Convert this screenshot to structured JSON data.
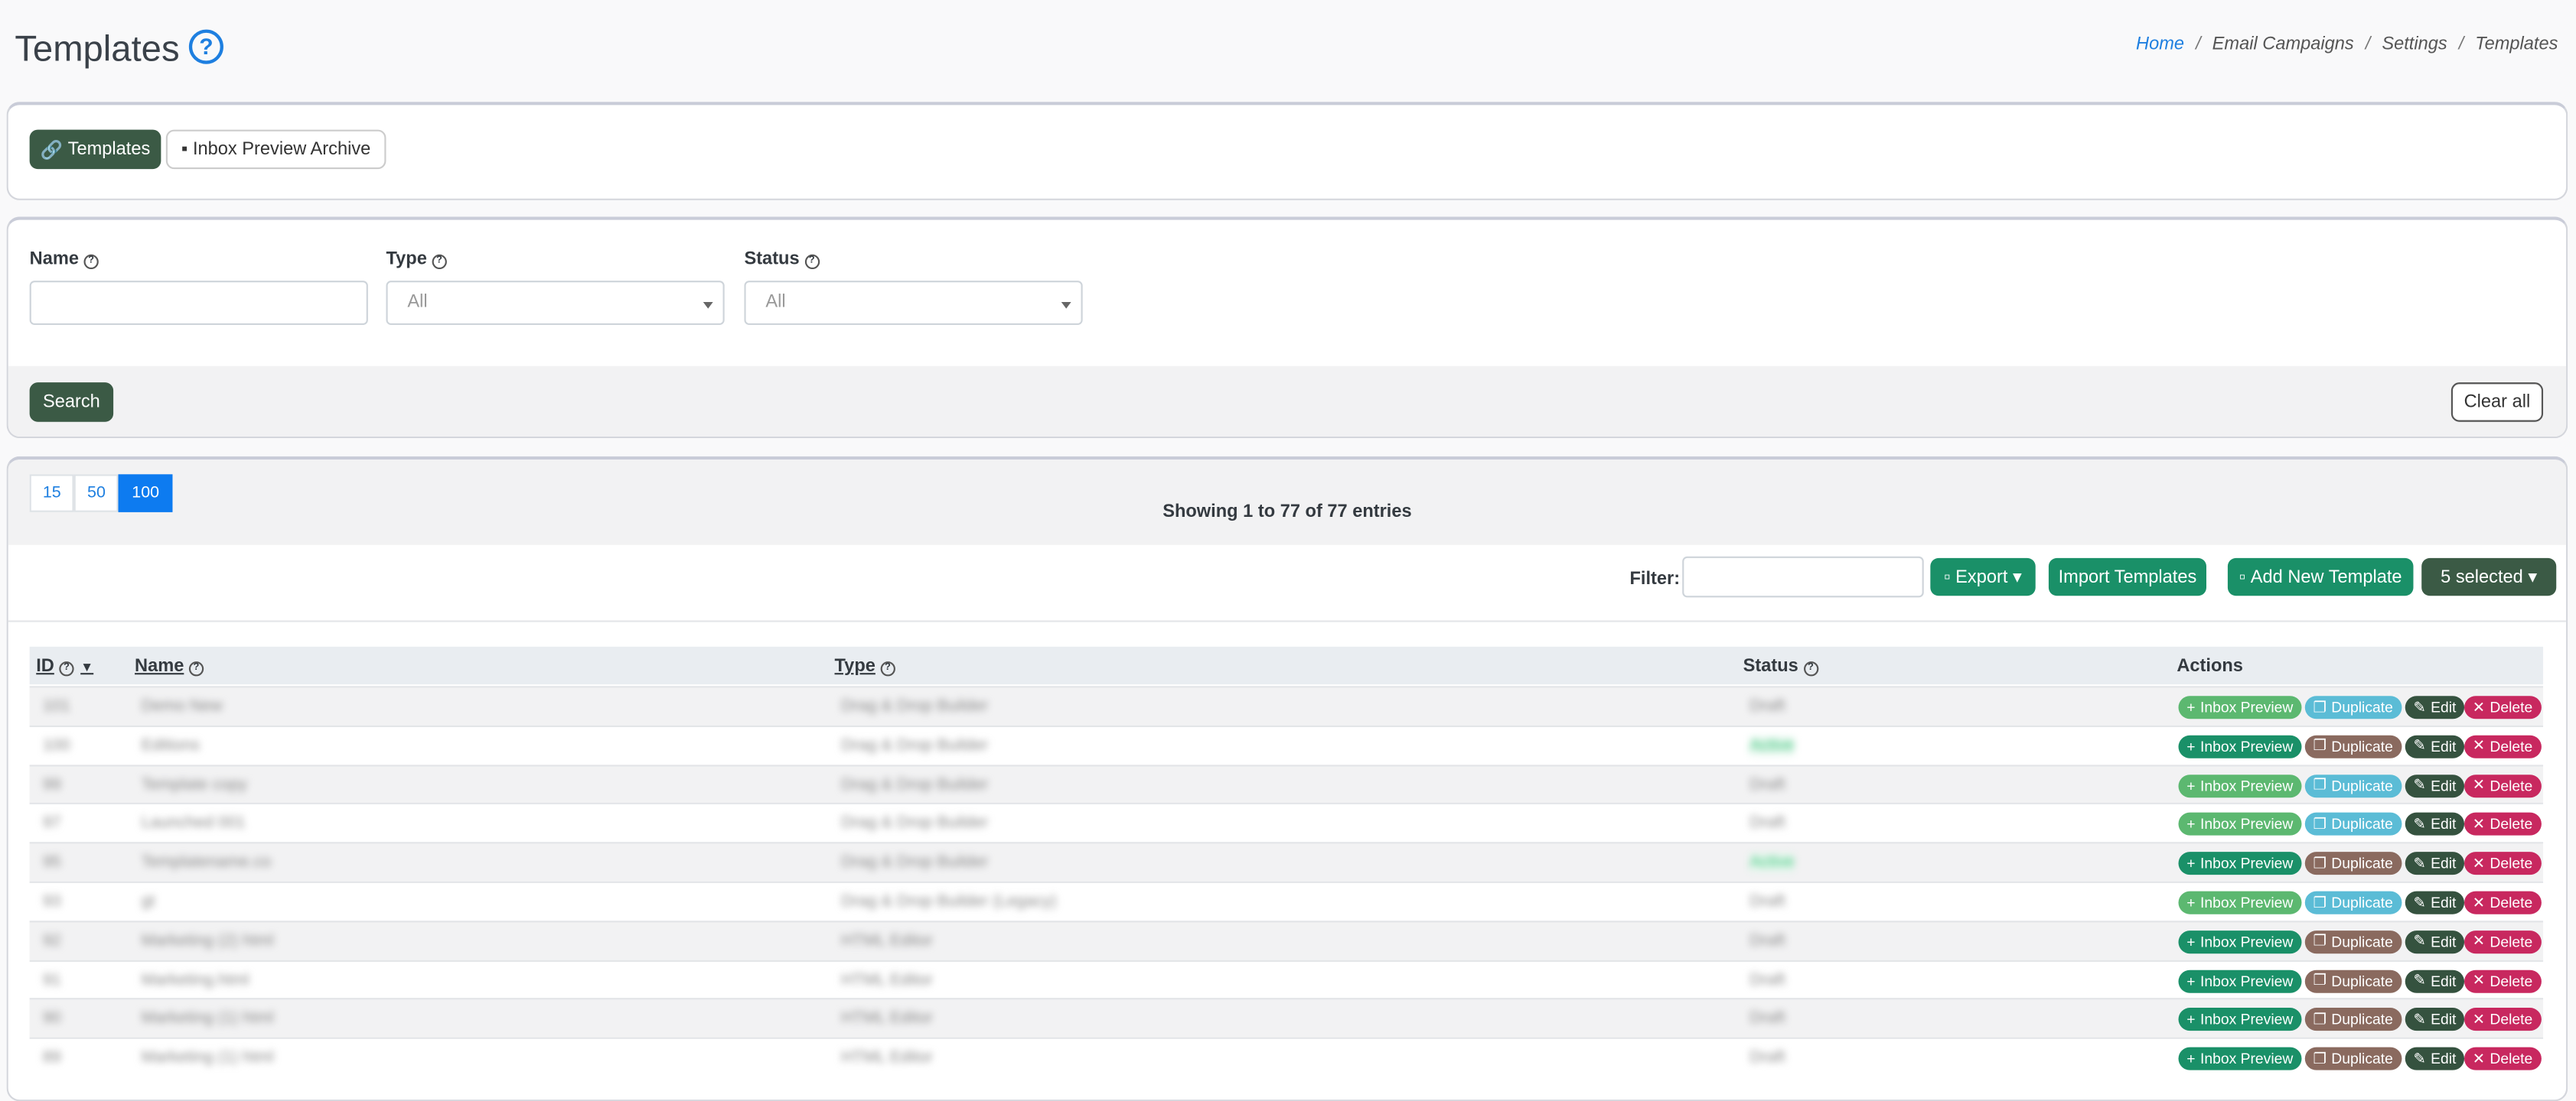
{
  "header": {
    "title": "Templates",
    "breadcrumb": [
      "Home",
      "Email Campaigns",
      "Settings",
      "Templates"
    ]
  },
  "tabs": [
    "Templates",
    "Inbox Preview Archive"
  ],
  "filters": {
    "fields": [
      {
        "label": "Name"
      },
      {
        "label": "Type",
        "placeholder": "All"
      },
      {
        "label": "Status",
        "placeholder": "All"
      }
    ],
    "search": "Search",
    "clear": "Clear all"
  },
  "page_sizes": [
    "15",
    "50",
    "100"
  ],
  "info": "Showing 1 to 77 of 77 entries",
  "toolbar": {
    "filter_label": "Filter:",
    "buttons": [
      "Export",
      "Import Templates",
      "Add New Template",
      "5 selected"
    ]
  },
  "table": {
    "columns": [
      "ID",
      "Name",
      "Type",
      "Status",
      "Actions"
    ],
    "actions": [
      "Inbox Preview",
      "Duplicate",
      "Edit",
      "Delete"
    ],
    "rows": [
      {
        "cells": [
          "101",
          "Demo New",
          "Drag & Drop Builder",
          "Draft"
        ],
        "preview_color": "#5cb870",
        "duplicate_color": "#5bbcd6"
      },
      {
        "cells": [
          "100",
          "Editions",
          "Drag & Drop Builder",
          "Active"
        ],
        "preview_color": "#1a9068",
        "duplicate_color": "#8a6a5f"
      },
      {
        "cells": [
          "99",
          "Template copy",
          "Drag & Drop Builder",
          "Draft"
        ],
        "preview_color": "#5cb870",
        "duplicate_color": "#5bbcd6"
      },
      {
        "cells": [
          "97",
          "Launched 001",
          "Drag & Drop Builder",
          "Draft"
        ],
        "preview_color": "#5cb870",
        "duplicate_color": "#5bbcd6"
      },
      {
        "cells": [
          "95",
          "Templatename.co",
          "Drag & Drop Builder",
          "Active"
        ],
        "preview_color": "#1a9068",
        "duplicate_color": "#8a6a5f"
      },
      {
        "cells": [
          "93",
          "gt",
          "Drag & Drop Builder (Legacy)",
          "Draft"
        ],
        "preview_color": "#5cb870",
        "duplicate_color": "#5bbcd6"
      },
      {
        "cells": [
          "92",
          "Marketing (2) html",
          "HTML Editor",
          "Draft"
        ],
        "preview_color": "#1a9068",
        "duplicate_color": "#8a6a5f"
      },
      {
        "cells": [
          "91",
          "Marketing.html",
          "HTML Editor",
          "Draft"
        ],
        "preview_color": "#1a9068",
        "duplicate_color": "#8a6a5f"
      },
      {
        "cells": [
          "90",
          "Marketing (1) html",
          "HTML Editor",
          "Draft"
        ],
        "preview_color": "#1a9068",
        "duplicate_color": "#8a6a5f"
      },
      {
        "cells": [
          "89",
          "Marketing (1) html",
          "HTML Editor",
          "Draft"
        ],
        "preview_color": "#1a9068",
        "duplicate_color": "#8a6a5f"
      }
    ]
  }
}
